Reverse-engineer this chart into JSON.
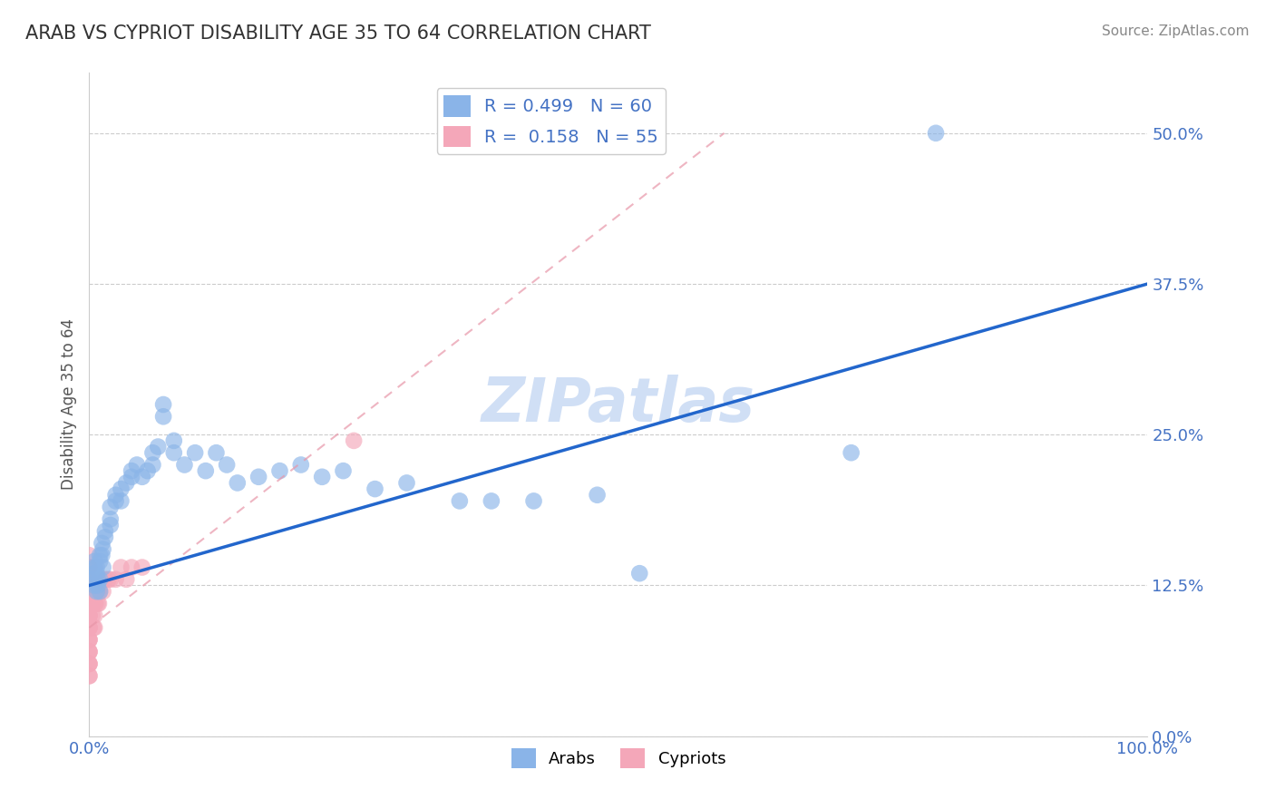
{
  "title": "ARAB VS CYPRIOT DISABILITY AGE 35 TO 64 CORRELATION CHART",
  "source": "Source: ZipAtlas.com",
  "ylabel": "Disability Age 35 to 64",
  "xlim": [
    0.0,
    1.0
  ],
  "ylim": [
    0.0,
    0.55
  ],
  "yticks": [
    0.0,
    0.125,
    0.25,
    0.375,
    0.5
  ],
  "ytick_labels": [
    "0.0%",
    "12.5%",
    "25.0%",
    "37.5%",
    "50.0%"
  ],
  "xticks": [
    0.0,
    0.25,
    0.5,
    0.75,
    1.0
  ],
  "xtick_labels": [
    "0.0%",
    "",
    "",
    "",
    "100.0%"
  ],
  "arab_R": 0.499,
  "arab_N": 60,
  "cypriot_R": 0.158,
  "cypriot_N": 55,
  "arab_color": "#8ab4e8",
  "cypriot_color": "#f4a7b9",
  "arab_line_color": "#2266cc",
  "cypriot_line_color": "#e896a8",
  "watermark": "ZIPatlas",
  "watermark_color": "#d0dff5",
  "arab_line_x0": 0.0,
  "arab_line_y0": 0.125,
  "arab_line_x1": 1.0,
  "arab_line_y1": 0.375,
  "cypriot_line_x0": 0.0,
  "cypriot_line_y0": 0.09,
  "cypriot_line_x1": 0.6,
  "cypriot_line_y1": 0.5,
  "arab_scatter_x": [
    0.005,
    0.005,
    0.005,
    0.005,
    0.005,
    0.007,
    0.007,
    0.007,
    0.008,
    0.008,
    0.01,
    0.01,
    0.01,
    0.01,
    0.012,
    0.012,
    0.013,
    0.013,
    0.015,
    0.015,
    0.02,
    0.02,
    0.02,
    0.025,
    0.025,
    0.03,
    0.03,
    0.035,
    0.04,
    0.04,
    0.045,
    0.05,
    0.055,
    0.06,
    0.06,
    0.065,
    0.07,
    0.07,
    0.08,
    0.08,
    0.09,
    0.1,
    0.11,
    0.12,
    0.13,
    0.14,
    0.16,
    0.18,
    0.2,
    0.22,
    0.24,
    0.27,
    0.3,
    0.35,
    0.38,
    0.42,
    0.48,
    0.52,
    0.72,
    0.8
  ],
  "arab_scatter_y": [
    0.135,
    0.14,
    0.145,
    0.13,
    0.125,
    0.14,
    0.135,
    0.12,
    0.13,
    0.125,
    0.15,
    0.145,
    0.13,
    0.12,
    0.16,
    0.15,
    0.155,
    0.14,
    0.17,
    0.165,
    0.19,
    0.18,
    0.175,
    0.2,
    0.195,
    0.205,
    0.195,
    0.21,
    0.22,
    0.215,
    0.225,
    0.215,
    0.22,
    0.235,
    0.225,
    0.24,
    0.265,
    0.275,
    0.245,
    0.235,
    0.225,
    0.235,
    0.22,
    0.235,
    0.225,
    0.21,
    0.215,
    0.22,
    0.225,
    0.215,
    0.22,
    0.205,
    0.21,
    0.195,
    0.195,
    0.195,
    0.2,
    0.135,
    0.235,
    0.5
  ],
  "cypriot_scatter_x": [
    0.0,
    0.0,
    0.0,
    0.0,
    0.0,
    0.0,
    0.0,
    0.0,
    0.0,
    0.0,
    0.0,
    0.0,
    0.0,
    0.0,
    0.0,
    0.0,
    0.0,
    0.0,
    0.0,
    0.0,
    0.0,
    0.0,
    0.0,
    0.0,
    0.0,
    0.0,
    0.0,
    0.0,
    0.0,
    0.0,
    0.003,
    0.003,
    0.004,
    0.004,
    0.005,
    0.005,
    0.005,
    0.006,
    0.006,
    0.008,
    0.008,
    0.009,
    0.009,
    0.01,
    0.012,
    0.013,
    0.015,
    0.018,
    0.02,
    0.025,
    0.03,
    0.035,
    0.04,
    0.05,
    0.25
  ],
  "cypriot_scatter_y": [
    0.08,
    0.09,
    0.1,
    0.11,
    0.12,
    0.13,
    0.14,
    0.07,
    0.06,
    0.15,
    0.08,
    0.09,
    0.1,
    0.11,
    0.07,
    0.06,
    0.05,
    0.12,
    0.13,
    0.14,
    0.08,
    0.09,
    0.1,
    0.07,
    0.06,
    0.11,
    0.05,
    0.12,
    0.13,
    0.14,
    0.1,
    0.11,
    0.09,
    0.12,
    0.11,
    0.1,
    0.09,
    0.12,
    0.11,
    0.11,
    0.12,
    0.11,
    0.12,
    0.12,
    0.13,
    0.12,
    0.13,
    0.13,
    0.13,
    0.13,
    0.14,
    0.13,
    0.14,
    0.14,
    0.245
  ]
}
